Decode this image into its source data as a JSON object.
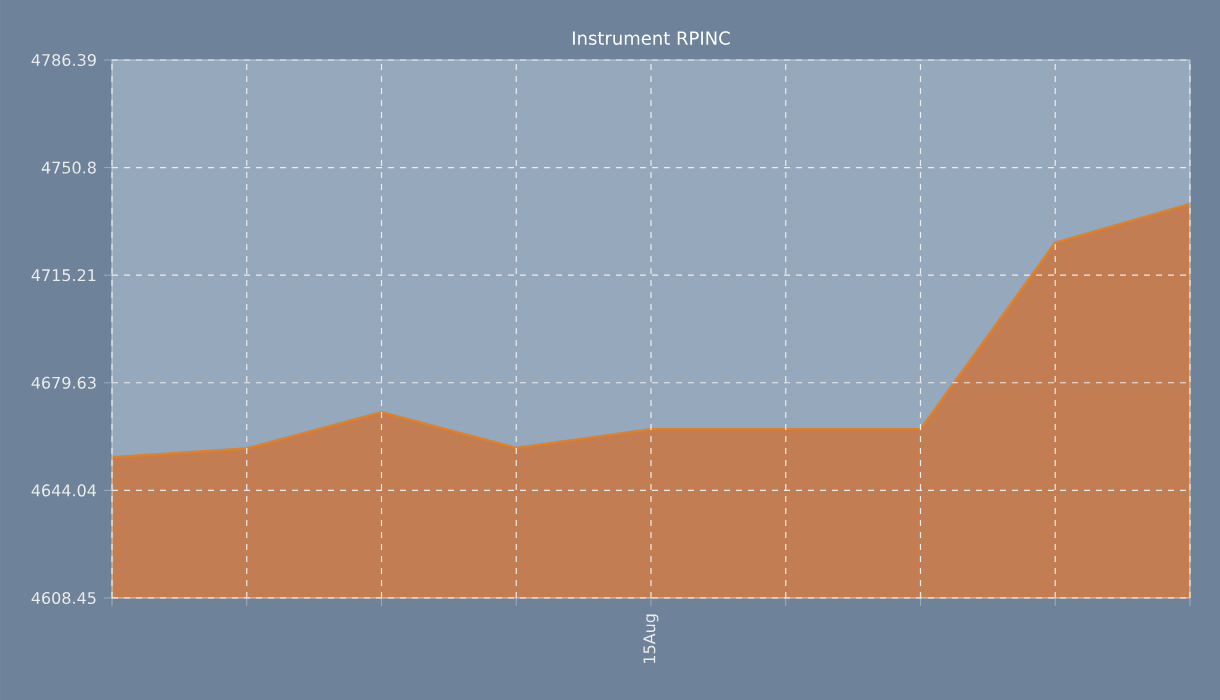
{
  "chart_data": {
    "type": "area",
    "title": "Instrument RPINC",
    "categories": [
      null,
      null,
      null,
      null,
      "15Aug",
      null,
      null,
      null,
      null
    ],
    "values": [
      4655.0,
      4657.9,
      4669.9,
      4658.1,
      4664.3,
      4664.3,
      4664.3,
      4726.0,
      4738.8
    ],
    "color": "#c27d52",
    "ylim": [
      4608.45,
      4786.39
    ],
    "yticks": [
      4608.45,
      4644.04,
      4679.63,
      4715.21,
      4750.8,
      4786.39
    ],
    "grid": true,
    "line_style": "dashed"
  }
}
